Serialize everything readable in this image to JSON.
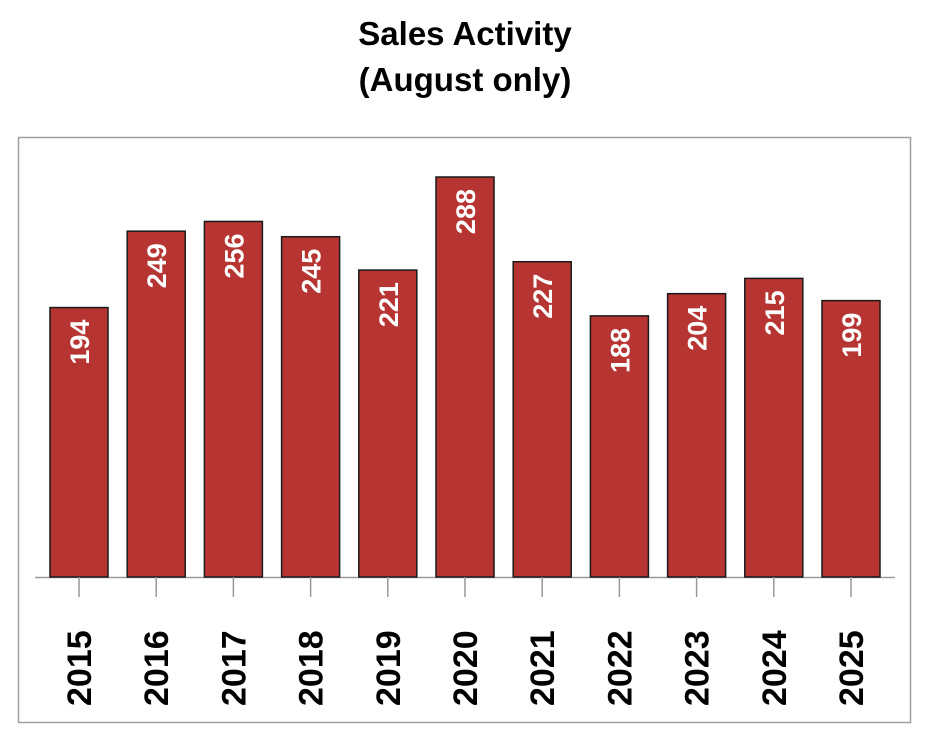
{
  "chart_data": {
    "type": "bar",
    "title": "Sales Activity",
    "subtitle": "(August only)",
    "xlabel": "",
    "ylabel": "",
    "categories": [
      "2015",
      "2016",
      "2017",
      "2018",
      "2019",
      "2020",
      "2021",
      "2022",
      "2023",
      "2024",
      "2025"
    ],
    "values": [
      194,
      249,
      256,
      245,
      221,
      288,
      227,
      188,
      204,
      215,
      199
    ],
    "ylim": [
      0,
      288
    ],
    "grid": false,
    "bar_color": "#b63532",
    "label_color": "#ffffff"
  }
}
